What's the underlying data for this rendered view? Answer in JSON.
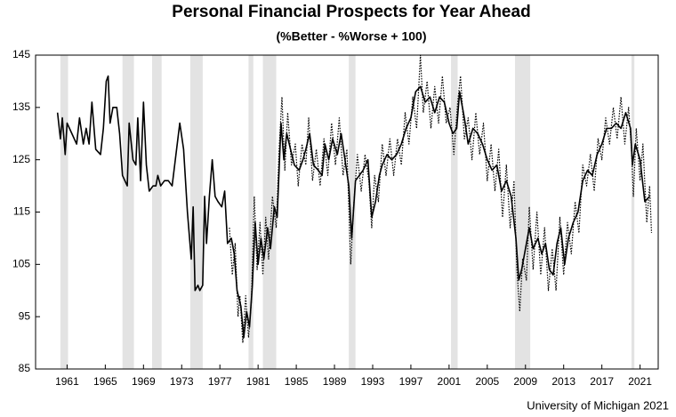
{
  "chart_data": {
    "type": "line",
    "title": "Personal Financial Prospects for Year Ahead",
    "subtitle": "(%Better - %Worse + 100)",
    "footer": "University of Michigan 2021",
    "xlim": [
      1957.7,
      2022.9
    ],
    "ylim": [
      85,
      145
    ],
    "xticks": [
      1961,
      1965,
      1969,
      1973,
      1977,
      1981,
      1985,
      1989,
      1993,
      1997,
      2001,
      2005,
      2009,
      2013,
      2017,
      2021
    ],
    "yticks": [
      85,
      95,
      105,
      115,
      125,
      135,
      145
    ],
    "recession_color": "#e3e3e3",
    "recessions": [
      [
        1960.3,
        1961.1
      ],
      [
        1966.8,
        1968.0
      ],
      [
        1969.9,
        1970.9
      ],
      [
        1973.9,
        1975.2
      ],
      [
        1980.0,
        1980.5
      ],
      [
        1981.5,
        1982.9
      ],
      [
        1990.5,
        1991.2
      ],
      [
        2001.2,
        2001.9
      ],
      [
        2007.9,
        2009.5
      ],
      [
        2020.1,
        2020.4
      ]
    ],
    "series": [
      {
        "color": "#000000",
        "style": "solid",
        "x": [
          1960,
          1960.3,
          1960.5,
          1960.8,
          1961,
          1961.5,
          1962,
          1962.3,
          1962.7,
          1963,
          1963.3,
          1963.6,
          1964,
          1964.5,
          1964.8,
          1965.1,
          1965.3,
          1965.5,
          1965.8,
          1966.2,
          1966.5,
          1966.8,
          1967.3,
          1967.5,
          1967.9,
          1968.2,
          1968.4,
          1968.7,
          1969,
          1969.3,
          1969.6,
          1970,
          1970.3,
          1970.5,
          1970.8,
          1971.2,
          1971.6,
          1972,
          1972.4,
          1972.8,
          1973.2,
          1973.6,
          1974,
          1974.2,
          1974.4,
          1974.7,
          1974.9,
          1975.2,
          1975.4,
          1975.6,
          1975.9,
          1976.2,
          1976.5,
          1976.8,
          1977.2,
          1977.5,
          1977.8,
          1978.2,
          1978.5,
          1978.8,
          1979.2,
          1979.5,
          1979.8,
          1980.1,
          1980.4,
          1980.7,
          1981,
          1981.3,
          1981.6,
          1982,
          1982.3,
          1982.7,
          1983,
          1983.4,
          1983.7,
          1984,
          1984.4,
          1984.8,
          1985.3,
          1985.7,
          1986,
          1986.4,
          1986.8,
          1987.3,
          1987.7,
          1988,
          1988.4,
          1988.8,
          1989.3,
          1989.7,
          1990.1,
          1990.5,
          1990.8,
          1991.2,
          1991.6,
          1992,
          1992.5,
          1992.9,
          1993.3,
          1993.7,
          1994,
          1994.5,
          1995,
          1995.5,
          1996,
          1996.5,
          1997,
          1997.5,
          1998,
          1998.5,
          1999,
          1999.5,
          2000,
          2000.5,
          2001,
          2001.4,
          2001.8,
          2002.1,
          2002.6,
          2003,
          2003.5,
          2004,
          2004.5,
          2005,
          2005.5,
          2006,
          2006.5,
          2007,
          2007.5,
          2008,
          2008.3,
          2008.6,
          2009,
          2009.4,
          2009.8,
          2010.3,
          2010.7,
          2011.1,
          2011.5,
          2011.9,
          2012.3,
          2012.7,
          2013.1,
          2013.5,
          2014,
          2014.5,
          2015,
          2015.5,
          2016,
          2016.5,
          2017,
          2017.5,
          2018,
          2018.5,
          2019,
          2019.5,
          2020,
          2020.2,
          2020.5,
          2021,
          2021.5,
          2022
        ],
        "values": [
          134,
          129,
          133,
          126,
          132,
          130,
          128,
          133,
          128,
          131,
          128,
          136,
          127,
          126,
          131,
          140,
          141,
          132,
          135,
          135,
          130,
          122,
          120,
          132,
          125,
          124,
          133,
          121,
          136,
          124,
          119,
          120,
          120,
          122,
          120,
          121,
          121,
          120,
          126,
          132,
          127,
          115,
          106,
          116,
          100,
          101,
          100,
          101,
          118,
          109,
          118,
          125,
          118,
          117,
          116,
          119,
          109,
          110,
          107,
          100,
          97,
          91,
          96,
          93,
          101,
          113,
          105,
          110,
          106,
          112,
          108,
          116,
          114,
          132,
          125,
          130,
          127,
          124,
          123,
          125,
          127,
          130,
          124,
          123,
          122,
          128,
          125,
          129,
          126,
          130,
          125,
          120,
          110,
          121,
          122,
          123,
          125,
          114,
          117,
          122,
          124,
          126,
          125,
          126,
          128,
          131,
          133,
          138,
          139,
          136,
          137,
          134,
          137,
          136,
          132,
          130,
          131,
          138,
          133,
          128,
          131,
          130,
          128,
          125,
          123,
          124,
          119,
          121,
          118,
          110,
          102,
          104,
          108,
          112,
          108,
          110,
          107,
          109,
          104,
          103,
          109,
          112,
          105,
          110,
          113,
          115,
          121,
          123,
          122,
          126,
          128,
          131,
          131,
          132,
          131,
          134,
          131,
          124,
          128,
          125,
          117,
          118
        ]
      },
      {
        "color": "#000000",
        "style": "dotted",
        "x": [
          1978,
          1978.3,
          1978.6,
          1978.9,
          1979.1,
          1979.4,
          1979.7,
          1980,
          1980.3,
          1980.6,
          1980.9,
          1981.2,
          1981.5,
          1981.8,
          1982.1,
          1982.5,
          1982.9,
          1983.2,
          1983.5,
          1983.8,
          1984.1,
          1984.5,
          1984.9,
          1985.2,
          1985.6,
          1986,
          1986.3,
          1986.7,
          1987.1,
          1987.5,
          1987.9,
          1988.3,
          1988.7,
          1989.1,
          1989.5,
          1989.9,
          1990.3,
          1990.7,
          1991,
          1991.4,
          1991.8,
          1992.2,
          1992.6,
          1992.9,
          1993.2,
          1993.6,
          1994,
          1994.4,
          1994.8,
          1995.2,
          1995.6,
          1996,
          1996.4,
          1996.8,
          1997.2,
          1997.6,
          1998,
          1998.3,
          1998.7,
          1999.1,
          1999.5,
          1999.9,
          2000.3,
          2000.7,
          2001.1,
          2001.5,
          2001.9,
          2002.2,
          2002.6,
          2003,
          2003.4,
          2003.8,
          2004.2,
          2004.6,
          2005,
          2005.4,
          2005.8,
          2006.2,
          2006.6,
          2007,
          2007.4,
          2007.8,
          2008.1,
          2008.4,
          2008.7,
          2009.1,
          2009.4,
          2009.8,
          2010.2,
          2010.6,
          2011,
          2011.4,
          2011.8,
          2012.2,
          2012.6,
          2013,
          2013.4,
          2013.8,
          2014.2,
          2014.6,
          2015,
          2015.4,
          2015.8,
          2016.2,
          2016.6,
          2017,
          2017.4,
          2017.8,
          2018.2,
          2018.6,
          2019,
          2019.4,
          2019.8,
          2020.1,
          2020.3,
          2020.6,
          2021,
          2021.3,
          2021.7,
          2022,
          2022.2
        ],
        "values": [
          112,
          103,
          109,
          95,
          99,
          90,
          99,
          91,
          98,
          118,
          104,
          113,
          103,
          114,
          106,
          118,
          112,
          127,
          137,
          123,
          134,
          124,
          128,
          120,
          128,
          124,
          133,
          121,
          127,
          120,
          129,
          122,
          132,
          124,
          133,
          122,
          127,
          105,
          116,
          126,
          119,
          126,
          121,
          112,
          122,
          117,
          128,
          122,
          129,
          122,
          129,
          124,
          134,
          128,
          137,
          131,
          145,
          134,
          140,
          131,
          139,
          132,
          141,
          132,
          135,
          126,
          136,
          141,
          129,
          133,
          125,
          134,
          126,
          132,
          121,
          128,
          119,
          127,
          114,
          124,
          112,
          121,
          104,
          96,
          106,
          102,
          116,
          104,
          115,
          103,
          112,
          100,
          108,
          100,
          114,
          103,
          113,
          107,
          117,
          111,
          124,
          120,
          126,
          119,
          129,
          125,
          133,
          128,
          135,
          129,
          137,
          128,
          135,
          127,
          118,
          131,
          121,
          128,
          113,
          120,
          111
        ]
      }
    ]
  }
}
